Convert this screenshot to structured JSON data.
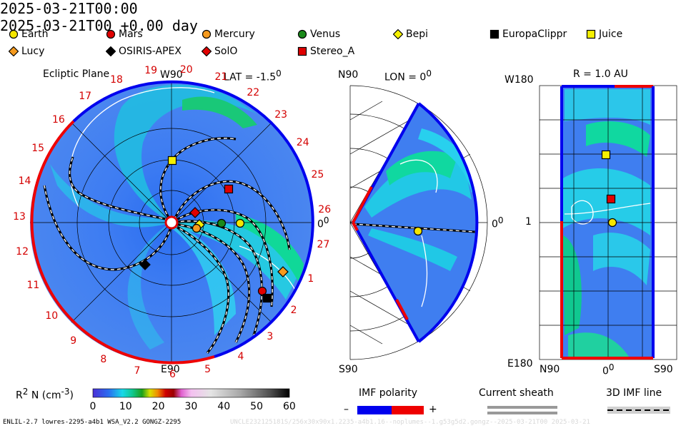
{
  "header": {
    "left_time": "2025-03-21T00:00",
    "right_time": "2025-03-21T00 +0.00 day"
  },
  "legend": [
    {
      "name": "Earth",
      "shape": "circle",
      "color": "#f5e600"
    },
    {
      "name": "Mars",
      "shape": "circle",
      "color": "#e00000"
    },
    {
      "name": "Mercury",
      "shape": "circle",
      "color": "#f59a1e"
    },
    {
      "name": "Venus",
      "shape": "circle",
      "color": "#1a8a1a"
    },
    {
      "name": "Bepi",
      "shape": "diamond",
      "color": "#f5f000"
    },
    {
      "name": "EuropaClippr",
      "shape": "square",
      "color": "#000000"
    },
    {
      "name": "Juice",
      "shape": "square",
      "color": "#f5f000"
    },
    {
      "name": "Lucy",
      "shape": "diamond",
      "color": "#f59a1e"
    },
    {
      "name": "OSIRIS-APEX",
      "shape": "diamond",
      "color": "#000000"
    },
    {
      "name": "SolO",
      "shape": "diamond",
      "color": "#e00000"
    },
    {
      "name": "Stereo_A",
      "shape": "square",
      "color": "#e00000"
    }
  ],
  "ecliptic": {
    "title": "Ecliptic Plane",
    "lat": "LAT = -1.5",
    "lat_deg": "0",
    "top": "W90",
    "bottom": "E90",
    "right": "0",
    "right_deg": "0",
    "carrington": [
      "19",
      "20",
      "21",
      "22",
      "23",
      "24",
      "25",
      "26",
      "27",
      "1",
      "2",
      "3",
      "4",
      "5",
      "6",
      "7",
      "8",
      "9",
      "10",
      "11",
      "12",
      "13",
      "14",
      "15",
      "16",
      "17",
      "18"
    ]
  },
  "meridional": {
    "top": "N90",
    "lon": "LON = 0",
    "lon_deg": "0",
    "right": "0",
    "right_deg": "0",
    "bottom": "S90"
  },
  "sphere": {
    "title": "R = 1.0 AU",
    "top_left": "W180",
    "mid_left": "1",
    "bottom_left": "E180",
    "x_left": "N90",
    "x_mid": "0",
    "x_mid_deg": "0",
    "x_right": "S90"
  },
  "colorbar": {
    "label_prefix": "R",
    "label_sup": "2",
    "label_mid": " N (cm",
    "label_sup2": "-3",
    "label_suffix": ")",
    "ticks": [
      "0",
      "10",
      "20",
      "30",
      "40",
      "50",
      "60"
    ]
  },
  "imf": {
    "title": "IMF polarity",
    "minus": "–",
    "plus": "+",
    "neg_color": "#0000ee",
    "pos_color": "#ee0000"
  },
  "current_sheath": {
    "title": "Current sheath"
  },
  "imf_line": {
    "title": "3D IMF line"
  },
  "footer": {
    "left": "ENLIL-2.7 lowres-2295-a4b1 WSA_V2.2 GONGZ-2295",
    "right": "UNCLE232125181S/256x30x90x1.2235-a4b1.16--noplumes--1.g53g5d2.gongz--2025-03-21T00   2025-03-21"
  }
}
